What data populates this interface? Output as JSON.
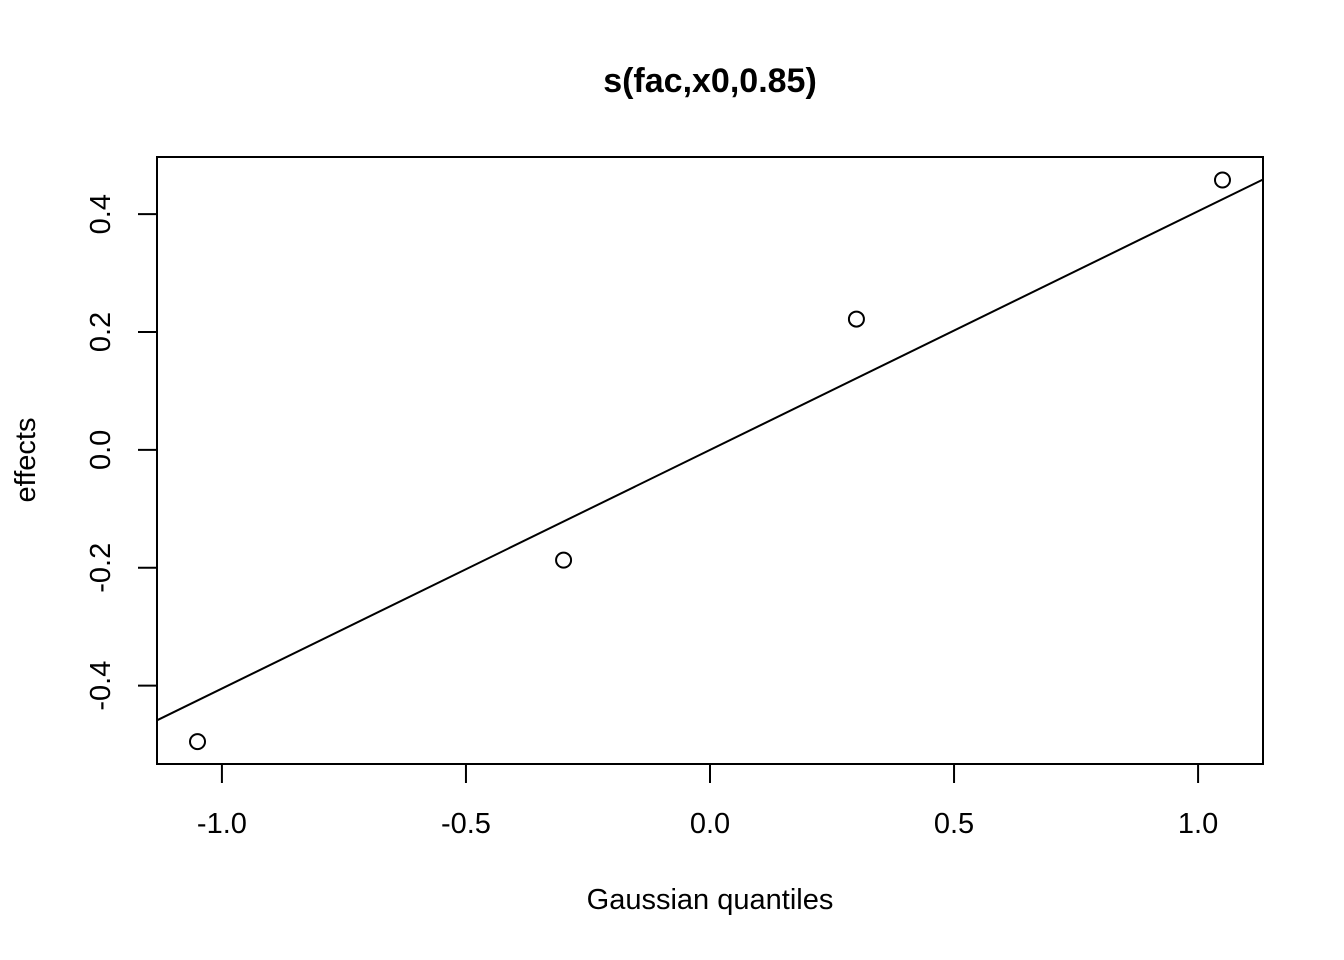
{
  "chart_data": {
    "type": "scatter",
    "title": "s(fac,x0,0.85)",
    "xlabel": "Gaussian quantiles",
    "ylabel": "effects",
    "xlim": [
      -1.133,
      1.133
    ],
    "ylim": [
      -0.533,
      0.497
    ],
    "x_ticks": [
      -1.0,
      -0.5,
      0.0,
      0.5,
      1.0
    ],
    "x_tick_labels": [
      "-1.0",
      "-0.5",
      "0.0",
      "0.5",
      "1.0"
    ],
    "y_ticks": [
      -0.4,
      -0.2,
      0.0,
      0.2,
      0.4
    ],
    "y_tick_labels": [
      "-0.4",
      "-0.2",
      "0.0",
      "0.2",
      "0.4"
    ],
    "points": [
      {
        "x": -1.05,
        "y": -0.495
      },
      {
        "x": -0.3,
        "y": -0.187
      },
      {
        "x": 0.3,
        "y": 0.222
      },
      {
        "x": 1.05,
        "y": 0.458
      }
    ],
    "reference_line": {
      "intercept": 0.0,
      "slope": 0.405
    },
    "grid": false,
    "legend": "none"
  }
}
